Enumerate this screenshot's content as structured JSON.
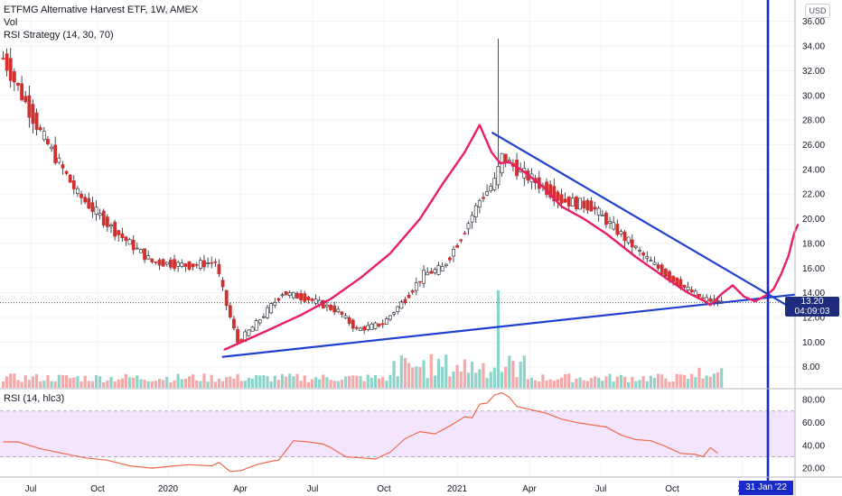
{
  "legend": {
    "symbol_line": "ETFMG Alternative Harvest ETF, 1W, AMEX",
    "vol_label": "Vol",
    "strategy_label": "RSI Strategy (14, 30, 70)",
    "rsi_label": "RSI (14, hlc3)"
  },
  "currency": "USD",
  "last_price": "13.20",
  "countdown": "04:09:03",
  "marker_date": "31 Jan '22",
  "colors": {
    "up": "#26a69a",
    "down": "#d32f2f",
    "vol_up": "#8ed3c9",
    "vol_down": "#f4a8a8",
    "trendline": "#1f3fce",
    "forecast_curve": "#e91e63",
    "rsi_line": "#f0694a",
    "rsi_band": "#f3e5fd",
    "vertical_marker": "#1a2ac9"
  },
  "chart_data": {
    "type": "candlestick",
    "price_axis": {
      "ticks": [
        "36.00",
        "34.00",
        "32.00",
        "30.00",
        "28.00",
        "26.00",
        "24.00",
        "22.00",
        "20.00",
        "18.00",
        "16.00",
        "14.00",
        "12.00",
        "10.00",
        "8.00"
      ],
      "ylim": [
        6.3,
        37.0
      ]
    },
    "time_axis": {
      "ticks": [
        "Jul",
        "Oct",
        "2020",
        "Apr",
        "Jul",
        "Oct",
        "2021",
        "Apr",
        "Jul",
        "Oct",
        "20"
      ]
    },
    "rsi_axis": {
      "ticks": [
        "80.00",
        "60.00",
        "40.00",
        "20.00"
      ],
      "ylim": [
        13,
        88
      ],
      "band": [
        30,
        70
      ]
    },
    "anchors": [
      {
        "i": 0,
        "c": 33.0
      },
      {
        "i": 10,
        "c": 27.0
      },
      {
        "i": 20,
        "c": 22.0
      },
      {
        "i": 30,
        "c": 19.0
      },
      {
        "i": 40,
        "c": 16.5
      },
      {
        "i": 50,
        "c": 16.2
      },
      {
        "i": 57,
        "c": 16.5
      },
      {
        "i": 60,
        "c": 13.0
      },
      {
        "i": 63,
        "c": 10.0
      },
      {
        "i": 68,
        "c": 11.5
      },
      {
        "i": 75,
        "c": 14.0
      },
      {
        "i": 82,
        "c": 13.5
      },
      {
        "i": 90,
        "c": 12.5
      },
      {
        "i": 95,
        "c": 11.0
      },
      {
        "i": 102,
        "c": 11.5
      },
      {
        "i": 108,
        "c": 13.5
      },
      {
        "i": 113,
        "c": 15.5
      },
      {
        "i": 118,
        "c": 16.0
      },
      {
        "i": 123,
        "c": 18.5
      },
      {
        "i": 128,
        "c": 21.5
      },
      {
        "i": 132,
        "c": 23.0
      },
      {
        "i": 134,
        "c": 25.0
      },
      {
        "i": 138,
        "c": 24.0
      },
      {
        "i": 143,
        "c": 23.0
      },
      {
        "i": 150,
        "c": 21.5
      },
      {
        "i": 158,
        "c": 21.0
      },
      {
        "i": 165,
        "c": 19.0
      },
      {
        "i": 172,
        "c": 17.0
      },
      {
        "i": 180,
        "c": 15.0
      },
      {
        "i": 188,
        "c": 13.5
      },
      {
        "i": 193,
        "c": 13.2
      }
    ],
    "rsi_points": [
      [
        0,
        43
      ],
      [
        4,
        43
      ],
      [
        10,
        37
      ],
      [
        16,
        33
      ],
      [
        22,
        29
      ],
      [
        28,
        27
      ],
      [
        34,
        22
      ],
      [
        40,
        20
      ],
      [
        46,
        22
      ],
      [
        50,
        23
      ],
      [
        56,
        22
      ],
      [
        58,
        25
      ],
      [
        61,
        17
      ],
      [
        64,
        18
      ],
      [
        68,
        23
      ],
      [
        72,
        26
      ],
      [
        74,
        27
      ],
      [
        78,
        44
      ],
      [
        82,
        43
      ],
      [
        86,
        41
      ],
      [
        88,
        38
      ],
      [
        92,
        30
      ],
      [
        96,
        29
      ],
      [
        100,
        28
      ],
      [
        104,
        34
      ],
      [
        108,
        46
      ],
      [
        112,
        52
      ],
      [
        116,
        50
      ],
      [
        120,
        57
      ],
      [
        124,
        65
      ],
      [
        126,
        64
      ],
      [
        128,
        76
      ],
      [
        130,
        77
      ],
      [
        132,
        84
      ],
      [
        134,
        86
      ],
      [
        136,
        82
      ],
      [
        138,
        74
      ],
      [
        142,
        71
      ],
      [
        146,
        68
      ],
      [
        150,
        63
      ],
      [
        154,
        60
      ],
      [
        158,
        58
      ],
      [
        162,
        56
      ],
      [
        166,
        49
      ],
      [
        170,
        45
      ],
      [
        174,
        44
      ],
      [
        178,
        39
      ],
      [
        182,
        33
      ],
      [
        186,
        32
      ],
      [
        188,
        30
      ],
      [
        190,
        38
      ],
      [
        192,
        33
      ]
    ],
    "forecast_points": [
      [
        188.5,
        13.3
      ],
      [
        190,
        13.0
      ],
      [
        193,
        13.9
      ],
      [
        196,
        14.6
      ],
      [
        199,
        13.7
      ],
      [
        202,
        13.3
      ],
      [
        205,
        13.8
      ],
      [
        207,
        14.3
      ],
      [
        209,
        15.5
      ],
      [
        211,
        17.0
      ],
      [
        212.5,
        18.8
      ],
      [
        213.5,
        19.5
      ]
    ]
  }
}
